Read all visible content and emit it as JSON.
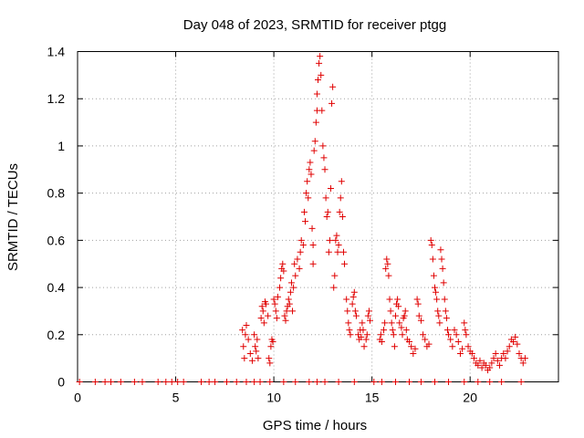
{
  "chart_data": {
    "type": "scatter",
    "title": "Day 048 of 2023, SRMTID for receiver ptgg",
    "xlabel": "GPS time / hours",
    "ylabel": "SRMTID / TECUs",
    "xlim": [
      0,
      24.5
    ],
    "ylim": [
      0,
      1.4
    ],
    "xticks": [
      0,
      5,
      10,
      15,
      20
    ],
    "yticks": [
      0,
      0.2,
      0.4,
      0.6,
      0.8,
      1,
      1.2,
      1.4
    ],
    "grid": true,
    "marker": "+",
    "color": "#e00000",
    "series": [
      {
        "name": "SRMTID",
        "points": [
          [
            0.1,
            0
          ],
          [
            0.9,
            0
          ],
          [
            1.4,
            0
          ],
          [
            1.7,
            0
          ],
          [
            2.2,
            0
          ],
          [
            2.9,
            0
          ],
          [
            3.3,
            0
          ],
          [
            4.1,
            0
          ],
          [
            4.5,
            0
          ],
          [
            4.8,
            0
          ],
          [
            5.1,
            0
          ],
          [
            5.4,
            0
          ],
          [
            6.3,
            0
          ],
          [
            6.7,
            0
          ],
          [
            7.0,
            0
          ],
          [
            7.6,
            0
          ],
          [
            8.1,
            0
          ],
          [
            8.6,
            0
          ],
          [
            9.0,
            0
          ],
          [
            9.3,
            0
          ],
          [
            9.8,
            0
          ],
          [
            10.5,
            0
          ],
          [
            11.1,
            0
          ],
          [
            11.8,
            0
          ],
          [
            12.2,
            0
          ],
          [
            12.6,
            0
          ],
          [
            13.3,
            0
          ],
          [
            14.1,
            0
          ],
          [
            15.1,
            0
          ],
          [
            15.5,
            0
          ],
          [
            16.2,
            0
          ],
          [
            16.9,
            0
          ],
          [
            17.5,
            0
          ],
          [
            18.2,
            0
          ],
          [
            18.9,
            0
          ],
          [
            19.7,
            0
          ],
          [
            20.4,
            0
          ],
          [
            21.0,
            0
          ],
          [
            21.6,
            0
          ],
          [
            22.6,
            0
          ],
          [
            8.4,
            0.22
          ],
          [
            8.45,
            0.15
          ],
          [
            8.5,
            0.1
          ],
          [
            8.55,
            0.2
          ],
          [
            8.6,
            0.24
          ],
          [
            8.7,
            0.18
          ],
          [
            8.8,
            0.12
          ],
          [
            8.9,
            0.09
          ],
          [
            9.0,
            0.2
          ],
          [
            9.05,
            0.15
          ],
          [
            9.1,
            0.13
          ],
          [
            9.15,
            0.18
          ],
          [
            9.2,
            0.1
          ],
          [
            9.35,
            0.27
          ],
          [
            9.4,
            0.32
          ],
          [
            9.45,
            0.3
          ],
          [
            9.5,
            0.25
          ],
          [
            9.55,
            0.34
          ],
          [
            9.6,
            0.33
          ],
          [
            9.7,
            0.28
          ],
          [
            9.75,
            0.1
          ],
          [
            9.8,
            0.08
          ],
          [
            9.85,
            0.15
          ],
          [
            9.9,
            0.18
          ],
          [
            9.95,
            0.17
          ],
          [
            10.0,
            0.35
          ],
          [
            10.05,
            0.33
          ],
          [
            10.1,
            0.3
          ],
          [
            10.15,
            0.27
          ],
          [
            10.2,
            0.36
          ],
          [
            10.3,
            0.4
          ],
          [
            10.35,
            0.44
          ],
          [
            10.4,
            0.48
          ],
          [
            10.45,
            0.5
          ],
          [
            10.5,
            0.47
          ],
          [
            10.55,
            0.28
          ],
          [
            10.6,
            0.26
          ],
          [
            10.65,
            0.3
          ],
          [
            10.7,
            0.32
          ],
          [
            10.75,
            0.35
          ],
          [
            10.8,
            0.33
          ],
          [
            10.85,
            0.38
          ],
          [
            10.9,
            0.42
          ],
          [
            10.95,
            0.3
          ],
          [
            11.0,
            0.4
          ],
          [
            11.05,
            0.5
          ],
          [
            11.1,
            0.45
          ],
          [
            11.2,
            0.52
          ],
          [
            11.3,
            0.48
          ],
          [
            11.35,
            0.55
          ],
          [
            11.4,
            0.6
          ],
          [
            11.5,
            0.58
          ],
          [
            11.55,
            0.72
          ],
          [
            11.6,
            0.68
          ],
          [
            11.65,
            0.8
          ],
          [
            11.7,
            0.85
          ],
          [
            11.75,
            0.78
          ],
          [
            11.8,
            0.9
          ],
          [
            11.85,
            0.93
          ],
          [
            11.9,
            0.88
          ],
          [
            11.95,
            0.65
          ],
          [
            12.0,
            0.58
          ],
          [
            12.0,
            0.5
          ],
          [
            12.05,
            0.98
          ],
          [
            12.1,
            1.02
          ],
          [
            12.15,
            1.1
          ],
          [
            12.2,
            1.15
          ],
          [
            12.2,
            1.22
          ],
          [
            12.25,
            1.28
          ],
          [
            12.3,
            1.35
          ],
          [
            12.35,
            1.38
          ],
          [
            12.4,
            1.3
          ],
          [
            12.45,
            1.15
          ],
          [
            12.5,
            1.0
          ],
          [
            12.55,
            0.95
          ],
          [
            12.6,
            0.9
          ],
          [
            12.65,
            0.78
          ],
          [
            12.7,
            0.7
          ],
          [
            12.75,
            0.72
          ],
          [
            12.8,
            0.55
          ],
          [
            12.85,
            0.6
          ],
          [
            12.9,
            0.82
          ],
          [
            12.95,
            1.18
          ],
          [
            13.0,
            1.25
          ],
          [
            13.05,
            0.4
          ],
          [
            13.1,
            0.45
          ],
          [
            13.15,
            0.6
          ],
          [
            13.2,
            0.62
          ],
          [
            13.25,
            0.55
          ],
          [
            13.3,
            0.58
          ],
          [
            13.35,
            0.72
          ],
          [
            13.4,
            0.78
          ],
          [
            13.45,
            0.85
          ],
          [
            13.5,
            0.7
          ],
          [
            13.55,
            0.55
          ],
          [
            13.6,
            0.5
          ],
          [
            13.7,
            0.35
          ],
          [
            13.75,
            0.3
          ],
          [
            13.8,
            0.25
          ],
          [
            13.85,
            0.22
          ],
          [
            13.9,
            0.2
          ],
          [
            14.0,
            0.33
          ],
          [
            14.05,
            0.36
          ],
          [
            14.1,
            0.38
          ],
          [
            14.15,
            0.3
          ],
          [
            14.2,
            0.28
          ],
          [
            14.3,
            0.2
          ],
          [
            14.35,
            0.18
          ],
          [
            14.4,
            0.22
          ],
          [
            14.45,
            0.19
          ],
          [
            14.5,
            0.25
          ],
          [
            14.55,
            0.22
          ],
          [
            14.6,
            0.15
          ],
          [
            14.7,
            0.18
          ],
          [
            14.75,
            0.2
          ],
          [
            14.8,
            0.28
          ],
          [
            14.85,
            0.3
          ],
          [
            14.9,
            0.26
          ],
          [
            15.4,
            0.18
          ],
          [
            15.45,
            0.2
          ],
          [
            15.5,
            0.17
          ],
          [
            15.6,
            0.22
          ],
          [
            15.65,
            0.25
          ],
          [
            15.7,
            0.48
          ],
          [
            15.75,
            0.52
          ],
          [
            15.8,
            0.5
          ],
          [
            15.85,
            0.45
          ],
          [
            15.9,
            0.35
          ],
          [
            15.95,
            0.3
          ],
          [
            16.0,
            0.25
          ],
          [
            16.05,
            0.22
          ],
          [
            16.1,
            0.2
          ],
          [
            16.15,
            0.15
          ],
          [
            16.2,
            0.28
          ],
          [
            16.25,
            0.33
          ],
          [
            16.3,
            0.35
          ],
          [
            16.35,
            0.32
          ],
          [
            16.4,
            0.25
          ],
          [
            16.5,
            0.23
          ],
          [
            16.55,
            0.2
          ],
          [
            16.6,
            0.27
          ],
          [
            16.65,
            0.28
          ],
          [
            16.7,
            0.3
          ],
          [
            16.75,
            0.22
          ],
          [
            16.8,
            0.18
          ],
          [
            16.9,
            0.17
          ],
          [
            17.0,
            0.15
          ],
          [
            17.1,
            0.12
          ],
          [
            17.2,
            0.14
          ],
          [
            17.3,
            0.35
          ],
          [
            17.35,
            0.33
          ],
          [
            17.4,
            0.28
          ],
          [
            17.5,
            0.26
          ],
          [
            17.6,
            0.2
          ],
          [
            17.7,
            0.18
          ],
          [
            17.8,
            0.15
          ],
          [
            17.9,
            0.16
          ],
          [
            18.0,
            0.6
          ],
          [
            18.05,
            0.58
          ],
          [
            18.1,
            0.52
          ],
          [
            18.15,
            0.45
          ],
          [
            18.2,
            0.4
          ],
          [
            18.25,
            0.38
          ],
          [
            18.3,
            0.35
          ],
          [
            18.35,
            0.3
          ],
          [
            18.4,
            0.28
          ],
          [
            18.45,
            0.25
          ],
          [
            18.5,
            0.56
          ],
          [
            18.55,
            0.52
          ],
          [
            18.6,
            0.48
          ],
          [
            18.65,
            0.42
          ],
          [
            18.7,
            0.35
          ],
          [
            18.75,
            0.3
          ],
          [
            18.8,
            0.27
          ],
          [
            18.85,
            0.22
          ],
          [
            18.9,
            0.2
          ],
          [
            19.0,
            0.18
          ],
          [
            19.1,
            0.15
          ],
          [
            19.2,
            0.22
          ],
          [
            19.3,
            0.2
          ],
          [
            19.4,
            0.17
          ],
          [
            19.5,
            0.12
          ],
          [
            19.6,
            0.14
          ],
          [
            19.7,
            0.25
          ],
          [
            19.75,
            0.22
          ],
          [
            19.8,
            0.2
          ],
          [
            19.9,
            0.15
          ],
          [
            20.0,
            0.13
          ],
          [
            20.1,
            0.12
          ],
          [
            20.2,
            0.1
          ],
          [
            20.3,
            0.08
          ],
          [
            20.4,
            0.07
          ],
          [
            20.5,
            0.09
          ],
          [
            20.6,
            0.06
          ],
          [
            20.7,
            0.08
          ],
          [
            20.8,
            0.07
          ],
          [
            20.9,
            0.05
          ],
          [
            21.0,
            0.06
          ],
          [
            21.1,
            0.08
          ],
          [
            21.2,
            0.1
          ],
          [
            21.3,
            0.12
          ],
          [
            21.4,
            0.09
          ],
          [
            21.5,
            0.07
          ],
          [
            21.6,
            0.1
          ],
          [
            21.7,
            0.12
          ],
          [
            21.8,
            0.1
          ],
          [
            21.9,
            0.13
          ],
          [
            22.0,
            0.15
          ],
          [
            22.1,
            0.18
          ],
          [
            22.2,
            0.17
          ],
          [
            22.3,
            0.19
          ],
          [
            22.4,
            0.16
          ],
          [
            22.5,
            0.12
          ],
          [
            22.6,
            0.1
          ],
          [
            22.7,
            0.08
          ],
          [
            22.8,
            0.1
          ]
        ]
      }
    ]
  }
}
